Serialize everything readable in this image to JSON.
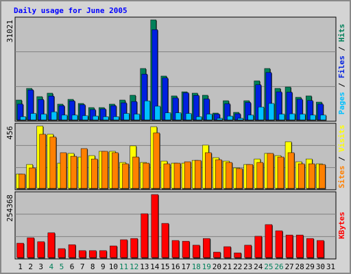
{
  "chart_data": {
    "type": "bar",
    "title": "Daily usage for June 2005",
    "title_color": "#0000ff",
    "legend_separator": " / ",
    "grid": true,
    "grid_divisions": 3,
    "categories": [
      "1",
      "2",
      "3",
      "4",
      "5",
      "6",
      "7",
      "8",
      "9",
      "10",
      "11",
      "12",
      "13",
      "14",
      "15",
      "16",
      "17",
      "18",
      "19",
      "20",
      "21",
      "22",
      "23",
      "24",
      "25",
      "26",
      "27",
      "28",
      "29",
      "30",
      "31"
    ],
    "category_colors": [
      "#000000",
      "#000000",
      "#000000",
      "#00805a",
      "#00805a",
      "#000000",
      "#000000",
      "#000000",
      "#000000",
      "#000000",
      "#00805a",
      "#00805a",
      "#000000",
      "#000000",
      "#000000",
      "#000000",
      "#000000",
      "#00805a",
      "#00805a",
      "#000000",
      "#000000",
      "#000000",
      "#000000",
      "#000000",
      "#00805a",
      "#00805a",
      "#000000",
      "#000000",
      "#000000",
      "#000000",
      "#000000"
    ],
    "panels": [
      {
        "ylim": [
          0,
          31021
        ],
        "yticks": [
          31021
        ],
        "series": [
          {
            "name": "Hits",
            "color": "#00805a",
            "values": [
              6160,
              9770,
              7220,
              8290,
              4890,
              6370,
              5100,
              3820,
              3820,
              4890,
              6160,
              7650,
              15940,
              31021,
              13600,
              7440,
              8710,
              8290,
              7650,
              2120,
              5950,
              2340,
              5950,
              12110,
              15940,
              9770,
              10200,
              7010,
              7440,
              5520,
              null
            ]
          },
          {
            "name": "Files",
            "color": "#0020e0",
            "values": [
              4900,
              9300,
              6300,
              7400,
              4400,
              5900,
              4700,
              3200,
              3400,
              4400,
              5300,
              5700,
              14200,
              28000,
              13000,
              6800,
              8400,
              7600,
              6500,
              1800,
              5000,
              1900,
              5400,
              10900,
              14700,
              8700,
              8600,
              6400,
              6000,
              4900,
              null
            ]
          },
          {
            "name": "Pages",
            "color": "#00c0ff",
            "values": [
              1000,
              2000,
              1800,
              2500,
              1500,
              1500,
              1300,
              1200,
              1000,
              1000,
              2000,
              1800,
              5900,
              4250,
              2200,
              2200,
              2000,
              1000,
              1800,
              500,
              1200,
              500,
              1500,
              4000,
              5100,
              1800,
              1900,
              1800,
              1500,
              1500,
              null
            ]
          }
        ]
      },
      {
        "ylim": [
          0,
          456
        ],
        "yticks": [
          456
        ],
        "series": [
          {
            "name": "Visits",
            "color": "#ffff00",
            "values": [
              105,
              175,
              456,
              396,
              185,
              256,
              230,
              240,
              271,
              271,
              190,
              311,
              190,
              451,
              200,
              185,
              185,
              205,
              316,
              225,
              200,
              150,
              175,
              215,
              256,
              240,
              341,
              195,
              215,
              180,
              null
            ]
          },
          {
            "name": "Sites",
            "color": "#ff8000",
            "values": [
              105,
              150,
              396,
              376,
              261,
              235,
              291,
              215,
              271,
              261,
              180,
              230,
              185,
              406,
              180,
              185,
              195,
              205,
              261,
              210,
              190,
              145,
              175,
              190,
              256,
              230,
              261,
              180,
              180,
              175,
              null
            ]
          }
        ]
      },
      {
        "ylim": [
          0,
          254368
        ],
        "yticks": [
          254368
        ],
        "series": [
          {
            "name": "KBytes",
            "color": "#ff0000",
            "values": [
              58000,
              80000,
              64000,
              100000,
              36000,
              52000,
              28000,
              28000,
              28000,
              47000,
              72000,
              77000,
              177000,
              254368,
              138000,
              69000,
              66000,
              50000,
              77000,
              22000,
              44000,
              19000,
              50000,
              86000,
              133000,
              108000,
              91000,
              91000,
              77000,
              69000,
              null
            ]
          }
        ]
      }
    ]
  }
}
